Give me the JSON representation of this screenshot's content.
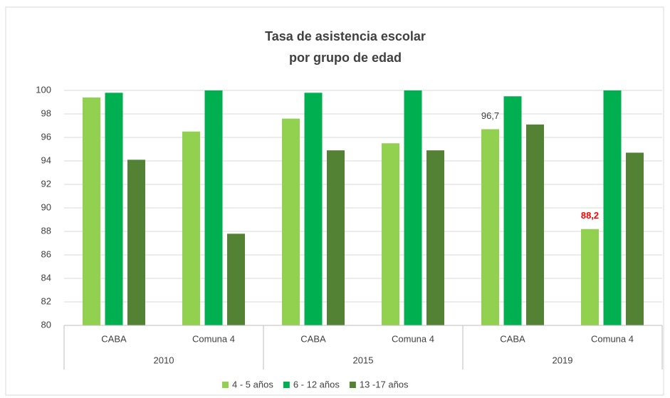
{
  "chart_data": {
    "type": "bar",
    "title": [
      "Tasa de asistencia escolar",
      "por grupo de edad"
    ],
    "categories": [
      "CABA",
      "Comuna 4",
      "CABA",
      "Comuna 4",
      "CABA",
      "Comuna 4"
    ],
    "groups": [
      "2010",
      "2015",
      "2019"
    ],
    "series": [
      {
        "name": "4 - 5 años",
        "color": "#92d050",
        "values": [
          99.4,
          96.5,
          97.6,
          95.5,
          96.7,
          88.2
        ],
        "value_labels": [
          null,
          null,
          null,
          null,
          "96,7",
          "88,2"
        ],
        "value_label_colors": [
          null,
          null,
          null,
          null,
          "#404040",
          "#ff0000"
        ]
      },
      {
        "name": "6 - 12  años",
        "color": "#00b050",
        "values": [
          99.8,
          100,
          99.8,
          100,
          99.5,
          100
        ]
      },
      {
        "name": "13 -17  años",
        "color": "#548235",
        "values": [
          94.1,
          87.8,
          94.9,
          94.9,
          97.1,
          94.7
        ]
      }
    ],
    "ylim": [
      80,
      100
    ],
    "yticks": [
      80,
      82,
      84,
      86,
      88,
      90,
      92,
      94,
      96,
      98,
      100
    ],
    "grid": true,
    "legend": "bottom"
  }
}
